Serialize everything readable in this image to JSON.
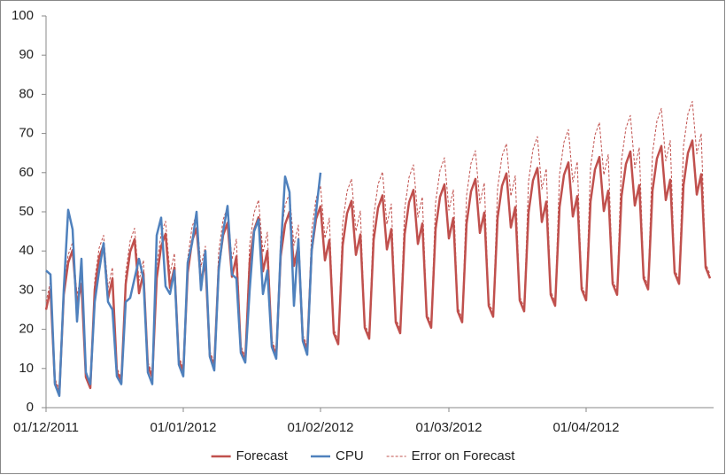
{
  "chart_data": {
    "type": "line",
    "categories": [
      "01/12/2011",
      null,
      null,
      null,
      null,
      null,
      null,
      null,
      null,
      null,
      null,
      null,
      null,
      null,
      null,
      null,
      null,
      null,
      null,
      null,
      null,
      null,
      null,
      null,
      null,
      null,
      null,
      null,
      null,
      null,
      null,
      "01/01/2012",
      null,
      null,
      null,
      null,
      null,
      null,
      null,
      null,
      null,
      null,
      null,
      null,
      null,
      null,
      null,
      null,
      null,
      null,
      null,
      null,
      null,
      null,
      null,
      null,
      null,
      null,
      null,
      null,
      null,
      null,
      "01/02/2012",
      null,
      null,
      null,
      null,
      null,
      null,
      null,
      null,
      null,
      null,
      null,
      null,
      null,
      null,
      null,
      null,
      null,
      null,
      null,
      null,
      null,
      null,
      null,
      null,
      null,
      null,
      null,
      null,
      "01/03/2012",
      null,
      null,
      null,
      null,
      null,
      null,
      null,
      null,
      null,
      null,
      null,
      null,
      null,
      null,
      null,
      null,
      null,
      null,
      null,
      null,
      null,
      null,
      null,
      null,
      null,
      null,
      null,
      null,
      null,
      null,
      "01/04/2012",
      null,
      null,
      null,
      null,
      null,
      null,
      null,
      null,
      null,
      null,
      null,
      null,
      null,
      null,
      null,
      null,
      null,
      null,
      null,
      null,
      null,
      null,
      null,
      null,
      null,
      null,
      null,
      null
    ],
    "series": [
      {
        "name": "Forecast",
        "color": "#c0504d",
        "dashed": false,
        "values": [
          25,
          30.2,
          6.4,
          3.6,
          28.8,
          37,
          40.2,
          26.4,
          31.6,
          7.8,
          5,
          30.2,
          38.4,
          41.6,
          27.8,
          33,
          9.2,
          6.4,
          31.6,
          39.8,
          43,
          29.2,
          34.4,
          10.6,
          7.8,
          33,
          41.2,
          44.4,
          30.6,
          35.8,
          12,
          9.2,
          34.4,
          42.6,
          45.8,
          32,
          37.2,
          13.4,
          10.6,
          35.8,
          44,
          47.2,
          33.4,
          38.6,
          14.8,
          12,
          37.2,
          45.4,
          48.6,
          34.8,
          40,
          16.2,
          13.4,
          38.6,
          46.8,
          50,
          36.2,
          41.4,
          17.6,
          14.8,
          40,
          48.2,
          51.4,
          37.6,
          42.8,
          19,
          16.2,
          41.4,
          49.6,
          52.8,
          39,
          44.2,
          20.4,
          17.6,
          42.8,
          51,
          54.2,
          40.4,
          45.6,
          21.8,
          19,
          44.2,
          52.4,
          55.6,
          41.8,
          47,
          23.2,
          20.4,
          45.6,
          53.8,
          57,
          43.2,
          48.4,
          24.6,
          21.8,
          47,
          55.2,
          58.4,
          44.6,
          49.8,
          26,
          23.2,
          48.4,
          56.6,
          59.8,
          46,
          51.2,
          27.4,
          24.6,
          49.8,
          58,
          61.2,
          47.4,
          52.6,
          28.8,
          26,
          51.2,
          59.4,
          62.6,
          48.8,
          54,
          30.2,
          27.4,
          52.6,
          60.8,
          64,
          50.2,
          55.4,
          31.6,
          28.8,
          54,
          62.2,
          65.4,
          51.6,
          56.8,
          33,
          30.2,
          55.4,
          63.6,
          66.8,
          53,
          58.2,
          34.4,
          31.6,
          56.8,
          65,
          68.2,
          54.4,
          59.6,
          35.8,
          33
        ]
      },
      {
        "name": "CPU",
        "color": "#4f81bd",
        "dashed": false,
        "values": [
          35,
          34,
          6,
          3,
          30,
          50.5,
          45.5,
          22,
          38,
          9,
          6,
          27,
          35,
          42,
          27,
          25,
          8,
          6,
          27,
          28,
          33,
          38,
          33,
          9,
          6,
          44,
          48.5,
          31,
          29,
          35,
          11,
          8,
          37,
          42,
          50,
          30,
          40,
          13,
          9.5,
          35,
          45,
          51.5,
          34,
          33,
          14,
          11.5,
          30,
          45,
          48,
          29,
          35,
          15.5,
          12.5,
          40,
          59,
          55,
          26,
          43,
          17,
          13.5,
          40,
          50,
          60,
          null,
          null,
          null,
          null,
          null,
          null,
          null,
          null,
          null,
          null,
          null,
          null,
          null,
          null,
          null,
          null,
          null,
          null,
          null,
          null,
          null,
          null,
          null,
          null,
          null,
          null,
          null,
          null,
          null,
          null,
          null,
          null,
          null,
          null,
          null,
          null,
          null,
          null,
          null,
          null,
          null,
          null,
          null,
          null,
          null,
          null,
          null,
          null,
          null,
          null,
          null,
          null,
          null,
          null,
          null,
          null,
          null,
          null,
          null,
          null,
          null,
          null,
          null,
          null,
          null,
          null,
          null,
          null,
          null,
          null,
          null,
          null,
          null,
          null,
          null,
          null,
          null,
          null,
          null,
          null,
          null,
          null,
          null,
          null,
          null,
          null,
          null,
          null
        ]
      },
      {
        "name": "Error on Forecast",
        "color": "#c0504d",
        "dashed": true,
        "values": [
          27,
          32.2,
          7.4,
          4.6,
          30.8,
          39,
          42.2,
          28.8,
          34,
          8.8,
          6,
          32.6,
          40.8,
          44,
          30.6,
          35.8,
          10.2,
          7.4,
          34.4,
          42.6,
          45.8,
          32.4,
          37.6,
          11.6,
          8.8,
          36.2,
          44.4,
          47.6,
          34.2,
          39.4,
          13,
          10.2,
          38,
          46.2,
          49.4,
          36,
          41.2,
          14.4,
          11.6,
          39.8,
          48,
          51.2,
          37.8,
          43,
          15.8,
          13,
          41.6,
          49.8,
          53,
          39.6,
          44.8,
          17.2,
          14.4,
          43.4,
          51.6,
          54.8,
          41.4,
          46.6,
          18.6,
          15.8,
          45.2,
          53.4,
          56.6,
          43.2,
          48.4,
          20,
          17.2,
          47,
          55.2,
          58.4,
          45,
          50.2,
          21.4,
          18.6,
          48.8,
          57,
          60.2,
          46.8,
          52,
          22.8,
          20,
          50.6,
          58.8,
          62,
          48.6,
          53.8,
          24.2,
          21.4,
          52.4,
          60.6,
          63.8,
          50.4,
          55.6,
          25.6,
          22.8,
          54.2,
          62.4,
          65.6,
          52.2,
          57.4,
          27,
          24.2,
          56,
          64.2,
          67.4,
          54,
          59.2,
          28.4,
          25.6,
          57.8,
          66,
          69.2,
          55.8,
          61,
          29.8,
          27,
          59.6,
          67.8,
          71,
          57.6,
          62.8,
          31.2,
          28.4,
          61.4,
          69.6,
          72.8,
          59.4,
          64.6,
          32.6,
          29.8,
          63.2,
          71.4,
          74.6,
          61.2,
          66.4,
          34,
          31.2,
          65,
          73.2,
          76.4,
          63,
          68.2,
          35.4,
          32.6,
          66.8,
          75,
          78.2,
          64.8,
          70,
          36.8,
          34
        ]
      }
    ],
    "ylim": [
      0,
      100
    ],
    "yticks": [
      0,
      10,
      20,
      30,
      40,
      50,
      60,
      70,
      80,
      90,
      100
    ],
    "grid": false,
    "legend": "bottom"
  }
}
